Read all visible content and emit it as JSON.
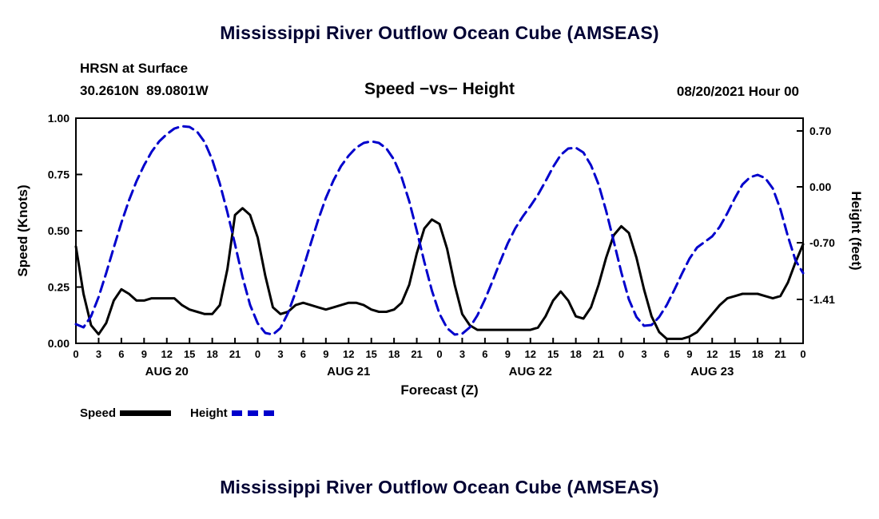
{
  "page": {
    "title_top": "Mississippi River Outflow Ocean Cube (AMSEAS)",
    "title_bottom": "Mississippi River Outflow Ocean Cube (AMSEAS)"
  },
  "header": {
    "station": "HRSN at Surface",
    "coordinates": "30.2610N  89.0801W",
    "plot_title": "Speed −vs− Height",
    "datetime": "08/20/2021 Hour 00"
  },
  "legend": {
    "speed_label": "Speed",
    "height_label": "Height"
  },
  "colors": {
    "speed": "#000000",
    "height": "#0000cc",
    "title": "#000033",
    "text": "#000000"
  },
  "chart_data": {
    "type": "line",
    "title": "Speed −vs− Height",
    "xlabel": "Forecast (Z)",
    "ylabel_left": "Speed (Knots)",
    "ylabel_right": "Height (feet)",
    "grid": false,
    "legend_position": "bottom-left",
    "x_hours_range": [
      0,
      96
    ],
    "x_tick_step_hours": 3,
    "x_tick_labels_cycle": [
      "0",
      "3",
      "6",
      "9",
      "12",
      "15",
      "18",
      "21"
    ],
    "day_labels": [
      {
        "label": "AUG 20",
        "center_hour": 12
      },
      {
        "label": "AUG 21",
        "center_hour": 36
      },
      {
        "label": "AUG 22",
        "center_hour": 60
      },
      {
        "label": "AUG 23",
        "center_hour": 84
      }
    ],
    "left_axis": {
      "range": [
        0.0,
        1.0
      ],
      "ticks": [
        0.0,
        0.25,
        0.5,
        0.75,
        1.0
      ],
      "tick_labels": [
        "0.00",
        "0.25",
        "0.50",
        "0.75",
        "1.00"
      ]
    },
    "right_axis": {
      "range": [
        -1.96,
        0.86
      ],
      "ticks": [
        0.7,
        0.0,
        -0.7,
        -1.41
      ],
      "tick_labels": [
        "0.70",
        "0.00",
        "-0.70",
        "-1.41"
      ]
    },
    "series": [
      {
        "name": "Speed",
        "units": "knots",
        "axis": "left",
        "color": "#000000",
        "style": "solid",
        "x_step_hours": 1,
        "values": [
          0.43,
          0.22,
          0.08,
          0.04,
          0.09,
          0.19,
          0.24,
          0.22,
          0.19,
          0.19,
          0.2,
          0.2,
          0.2,
          0.2,
          0.17,
          0.15,
          0.14,
          0.13,
          0.13,
          0.17,
          0.33,
          0.57,
          0.6,
          0.57,
          0.47,
          0.3,
          0.16,
          0.13,
          0.14,
          0.17,
          0.18,
          0.17,
          0.16,
          0.15,
          0.16,
          0.17,
          0.18,
          0.18,
          0.17,
          0.15,
          0.14,
          0.14,
          0.15,
          0.18,
          0.26,
          0.4,
          0.51,
          0.55,
          0.53,
          0.42,
          0.26,
          0.13,
          0.08,
          0.06,
          0.06,
          0.06,
          0.06,
          0.06,
          0.06,
          0.06,
          0.06,
          0.07,
          0.12,
          0.19,
          0.23,
          0.19,
          0.12,
          0.11,
          0.16,
          0.26,
          0.38,
          0.48,
          0.52,
          0.49,
          0.38,
          0.24,
          0.12,
          0.05,
          0.02,
          0.02,
          0.02,
          0.03,
          0.05,
          0.09,
          0.13,
          0.17,
          0.2,
          0.21,
          0.22,
          0.22,
          0.22,
          0.21,
          0.2,
          0.21,
          0.27,
          0.36,
          0.44
        ]
      },
      {
        "name": "Height",
        "units": "feet",
        "axis": "right",
        "color": "#0000cc",
        "style": "dashed",
        "x_step_hours": 1,
        "values": [
          -1.72,
          -1.76,
          -1.62,
          -1.38,
          -1.08,
          -0.76,
          -0.45,
          -0.17,
          0.07,
          0.27,
          0.44,
          0.57,
          0.66,
          0.73,
          0.76,
          0.75,
          0.69,
          0.56,
          0.34,
          0.04,
          -0.32,
          -0.72,
          -1.13,
          -1.48,
          -1.71,
          -1.83,
          -1.85,
          -1.77,
          -1.58,
          -1.32,
          -1.02,
          -0.71,
          -0.41,
          -0.14,
          0.08,
          0.26,
          0.39,
          0.49,
          0.55,
          0.57,
          0.55,
          0.48,
          0.34,
          0.12,
          -0.18,
          -0.55,
          -0.94,
          -1.3,
          -1.59,
          -1.77,
          -1.85,
          -1.84,
          -1.76,
          -1.61,
          -1.41,
          -1.18,
          -0.94,
          -0.71,
          -0.52,
          -0.37,
          -0.24,
          -0.1,
          0.07,
          0.25,
          0.4,
          0.48,
          0.49,
          0.43,
          0.27,
          0.03,
          -0.3,
          -0.68,
          -1.07,
          -1.41,
          -1.63,
          -1.74,
          -1.73,
          -1.63,
          -1.48,
          -1.29,
          -1.09,
          -0.9,
          -0.76,
          -0.69,
          -0.62,
          -0.5,
          -0.33,
          -0.14,
          0.03,
          0.12,
          0.15,
          0.11,
          -0.02,
          -0.28,
          -0.62,
          -0.92,
          -1.08
        ]
      }
    ]
  }
}
